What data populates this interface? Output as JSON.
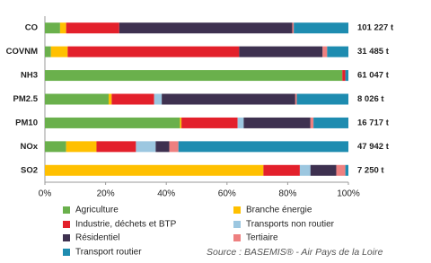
{
  "chart_data": {
    "type": "stacked_bar_horizontal",
    "categories": [
      "CO",
      "COVNM",
      "NH3",
      "PM2.5",
      "PM10",
      "NOx",
      "SO2"
    ],
    "totals": [
      "101 227 t",
      "31 485 t",
      "61 047 t",
      "8 026 t",
      "16 717 t",
      "47 942 t",
      "7 250 t"
    ],
    "series": [
      {
        "name": "Agriculture",
        "color": "#6ab04c",
        "values": [
          5,
          2,
          98,
          21,
          44.5,
          7,
          0
        ]
      },
      {
        "name": "Branche énergie",
        "color": "#ffc000",
        "values": [
          2,
          5.5,
          0,
          1,
          0.5,
          10,
          72
        ]
      },
      {
        "name": "Industrie, déchets et BTP",
        "color": "#e3202b",
        "values": [
          17.5,
          56.5,
          1,
          14,
          18.5,
          13,
          12
        ]
      },
      {
        "name": "Transports non routier",
        "color": "#9cc7e0",
        "values": [
          0,
          0,
          0,
          2.5,
          2,
          6.5,
          3.5
        ]
      },
      {
        "name": "Résidentiel",
        "color": "#3e3150",
        "values": [
          57,
          27.5,
          0,
          44,
          22,
          4.5,
          8.5
        ]
      },
      {
        "name": "Tertiaire",
        "color": "#ee8080",
        "values": [
          0.5,
          1.5,
          0,
          0.5,
          1,
          3,
          3
        ]
      },
      {
        "name": "Transport routier",
        "color": "#1e8cb0",
        "values": [
          18,
          7,
          1,
          17,
          11.5,
          56,
          1
        ]
      }
    ],
    "xlim": [
      0,
      100
    ],
    "xticks": [
      {
        "value": 0,
        "label": "0%"
      },
      {
        "value": 20,
        "label": "20%"
      },
      {
        "value": 40,
        "label": "40%"
      },
      {
        "value": 60,
        "label": "60%"
      },
      {
        "value": 80,
        "label": "80%"
      },
      {
        "value": 100,
        "label": "100%"
      }
    ],
    "source": "Source : BASEMIS® - Air Pays de la Loire"
  }
}
